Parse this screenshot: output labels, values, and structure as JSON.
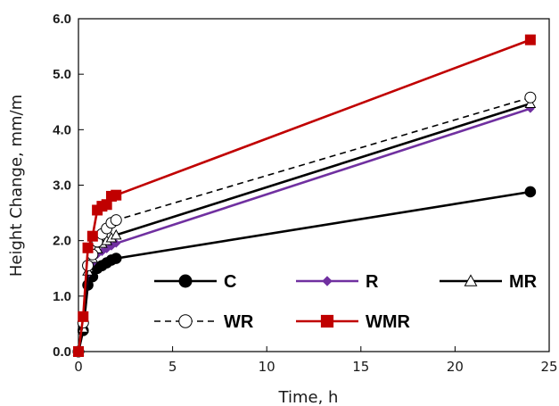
{
  "chart_data": {
    "type": "line",
    "title": "",
    "xlabel": "Time, h",
    "ylabel": "Height Change, mm/m",
    "xlim": [
      0,
      25
    ],
    "ylim": [
      0,
      6
    ],
    "x_ticks": [
      "0",
      "5",
      "10",
      "15",
      "20",
      "25"
    ],
    "y_ticks": [
      "0.0",
      "1.0",
      "2.0",
      "3.0",
      "4.0",
      "5.0",
      "6.0"
    ],
    "grid": false,
    "legend_position": "bottom-right",
    "series": [
      {
        "name": "C",
        "color": "#000000",
        "marker": "filled-circle",
        "dash": "solid",
        "x": [
          0,
          0.25,
          0.5,
          0.75,
          1.0,
          1.25,
          1.5,
          1.75,
          2.0,
          24.0
        ],
        "y": [
          0.0,
          0.38,
          1.2,
          1.35,
          1.5,
          1.55,
          1.6,
          1.65,
          1.68,
          2.88
        ]
      },
      {
        "name": "R",
        "color": "#7030a0",
        "marker": "diamond",
        "dash": "solid",
        "x": [
          0,
          0.25,
          0.5,
          0.75,
          1.0,
          1.25,
          1.5,
          1.75,
          2.0,
          24.0
        ],
        "y": [
          0.0,
          0.45,
          1.4,
          1.6,
          1.75,
          1.8,
          1.85,
          1.9,
          1.95,
          4.38
        ]
      },
      {
        "name": "MR",
        "color": "#000000",
        "marker": "open-triangle",
        "dash": "solid",
        "x": [
          0,
          0.25,
          0.5,
          0.75,
          1.0,
          1.25,
          1.5,
          1.75,
          2.0,
          24.0
        ],
        "y": [
          0.0,
          0.42,
          1.45,
          1.68,
          1.85,
          1.95,
          2.0,
          2.05,
          2.1,
          4.47
        ]
      },
      {
        "name": "WR",
        "color": "#000000",
        "marker": "open-circle",
        "dash": "dashed",
        "x": [
          0,
          0.25,
          0.5,
          0.75,
          1.0,
          1.25,
          1.5,
          1.75,
          2.0,
          24.0
        ],
        "y": [
          0.0,
          0.52,
          1.55,
          1.75,
          1.98,
          2.12,
          2.22,
          2.32,
          2.37,
          4.58
        ]
      },
      {
        "name": "WMR",
        "color": "#c00000",
        "marker": "filled-square",
        "dash": "solid",
        "x": [
          0,
          0.25,
          0.5,
          0.75,
          1.0,
          1.25,
          1.5,
          1.75,
          2.0,
          24.0
        ],
        "y": [
          0.0,
          0.63,
          1.87,
          2.08,
          2.55,
          2.62,
          2.65,
          2.8,
          2.82,
          5.62
        ]
      }
    ]
  }
}
